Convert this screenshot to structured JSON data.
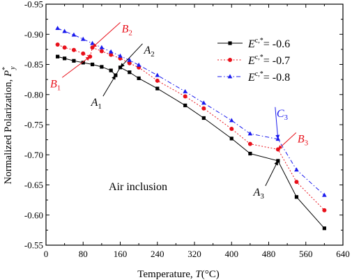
{
  "chart_data": {
    "type": "line",
    "xlabel_text": "Temperature, ",
    "xlabel_var": "T",
    "xlabel_unit": "(°C)",
    "ylabel_text": "Normalized Polarization, ",
    "ylabel_var": "P",
    "ylabel_sup": "*",
    "ylabel_sub": "y",
    "xlim": [
      0,
      640
    ],
    "ylim": [
      -0.55,
      -0.95
    ],
    "y_inverted": true,
    "x_ticks": [
      "0",
      "80",
      "160",
      "240",
      "320",
      "400",
      "480",
      "560",
      "640"
    ],
    "x_tick_values": [
      0,
      80,
      160,
      240,
      320,
      400,
      480,
      560,
      640
    ],
    "y_ticks": [
      "-0.95",
      "-0.90",
      "-0.85",
      "-0.80",
      "-0.75",
      "-0.70",
      "-0.65",
      "-0.60",
      "-0.55"
    ],
    "y_tick_values": [
      -0.95,
      -0.9,
      -0.85,
      -0.8,
      -0.75,
      -0.7,
      -0.65,
      -0.6,
      -0.55
    ],
    "grid": false,
    "legend_position": "top-right",
    "series": [
      {
        "name_prefix": "E",
        "name_sup": "c,*",
        "name_suffix": "= -0.6",
        "color": "#000000",
        "marker": "square",
        "dash": "solid",
        "x": [
          25,
          40,
          60,
          80,
          100,
          120,
          140,
          150,
          160,
          180,
          200,
          240,
          300,
          340,
          400,
          440,
          500,
          540,
          600
        ],
        "y": [
          -0.863,
          -0.86,
          -0.856,
          -0.853,
          -0.85,
          -0.846,
          -0.84,
          -0.832,
          -0.845,
          -0.837,
          -0.827,
          -0.81,
          -0.782,
          -0.761,
          -0.727,
          -0.702,
          -0.69,
          -0.63,
          -0.578
        ]
      },
      {
        "name_prefix": "E",
        "name_sup": "c,*",
        "name_suffix": "= -0.7",
        "color": "#e8101a",
        "marker": "circle",
        "dash": "dot",
        "x": [
          25,
          40,
          60,
          80,
          95,
          100,
          120,
          140,
          160,
          180,
          200,
          240,
          300,
          340,
          400,
          440,
          500,
          540,
          600
        ],
        "y": [
          -0.883,
          -0.878,
          -0.874,
          -0.868,
          -0.863,
          -0.878,
          -0.872,
          -0.866,
          -0.86,
          -0.852,
          -0.845,
          -0.823,
          -0.797,
          -0.777,
          -0.743,
          -0.718,
          -0.709,
          -0.655,
          -0.608
        ]
      },
      {
        "name_prefix": "E",
        "name_sup": "c,*",
        "name_suffix": "= -0.8",
        "color": "#1a1aee",
        "marker": "triangle",
        "dash": "dashdot",
        "x": [
          25,
          40,
          60,
          80,
          100,
          120,
          140,
          160,
          180,
          200,
          240,
          300,
          340,
          400,
          440,
          500,
          540,
          600
        ],
        "y": [
          -0.91,
          -0.905,
          -0.899,
          -0.892,
          -0.885,
          -0.878,
          -0.871,
          -0.864,
          -0.857,
          -0.849,
          -0.832,
          -0.805,
          -0.786,
          -0.757,
          -0.735,
          -0.726,
          -0.675,
          -0.633
        ]
      }
    ],
    "annotations": [
      {
        "text": "A",
        "sub": "1",
        "color": "#000000",
        "point": [
          150,
          -0.832
        ]
      },
      {
        "text": "A",
        "sub": "2",
        "color": "#000000",
        "point": [
          160,
          -0.845
        ]
      },
      {
        "text": "A",
        "sub": "3",
        "color": "#000000",
        "point": [
          500,
          -0.69
        ]
      },
      {
        "text": "B",
        "sub": "1",
        "color": "#e8101a",
        "point": [
          95,
          -0.863
        ]
      },
      {
        "text": "B",
        "sub": "2",
        "color": "#e8101a",
        "point": [
          100,
          -0.878
        ]
      },
      {
        "text": "B",
        "sub": "3",
        "color": "#e8101a",
        "point": [
          500,
          -0.709
        ]
      },
      {
        "text": "C",
        "sub": "3",
        "color": "#1a1aee",
        "point": [
          500,
          -0.726
        ]
      }
    ],
    "inset_text": "Air inclusion"
  }
}
